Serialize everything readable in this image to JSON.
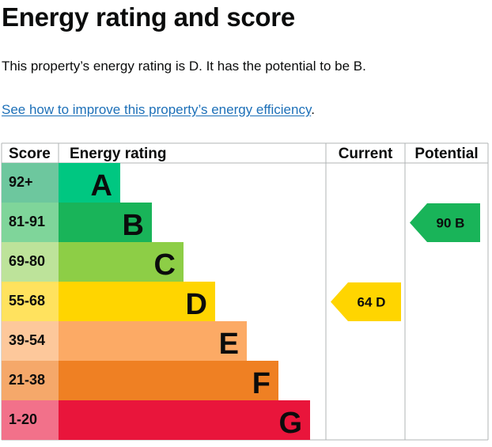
{
  "heading": "Energy rating and score",
  "summary": "This property’s energy rating is D. It has the potential to be B.",
  "improve_link": {
    "text": "See how to improve this property’s energy efficiency",
    "suffix": "."
  },
  "chart_data": {
    "type": "table",
    "columns": [
      "Score",
      "Energy rating",
      "Current",
      "Potential"
    ],
    "bands": [
      {
        "score": "92+",
        "letter": "A",
        "band_color": "#00c781",
        "score_color": "#6dc79e"
      },
      {
        "score": "81-91",
        "letter": "B",
        "band_color": "#19b459",
        "score_color": "#7fd59a"
      },
      {
        "score": "69-80",
        "letter": "C",
        "band_color": "#8dce46",
        "score_color": "#bde39a"
      },
      {
        "score": "55-68",
        "letter": "D",
        "band_color": "#ffd500",
        "score_color": "#ffe25e"
      },
      {
        "score": "39-54",
        "letter": "E",
        "band_color": "#fcaa65",
        "score_color": "#fdc89b"
      },
      {
        "score": "21-38",
        "letter": "F",
        "band_color": "#ef8023",
        "score_color": "#f5a86a"
      },
      {
        "score": "1-20",
        "letter": "G",
        "band_color": "#e9153b",
        "score_color": "#f2718a"
      }
    ],
    "current": {
      "score": 64,
      "letter": "D",
      "label": "64  D",
      "color": "#ffd500"
    },
    "potential": {
      "score": 90,
      "letter": "B",
      "label": "90  B",
      "color": "#19b459"
    }
  }
}
